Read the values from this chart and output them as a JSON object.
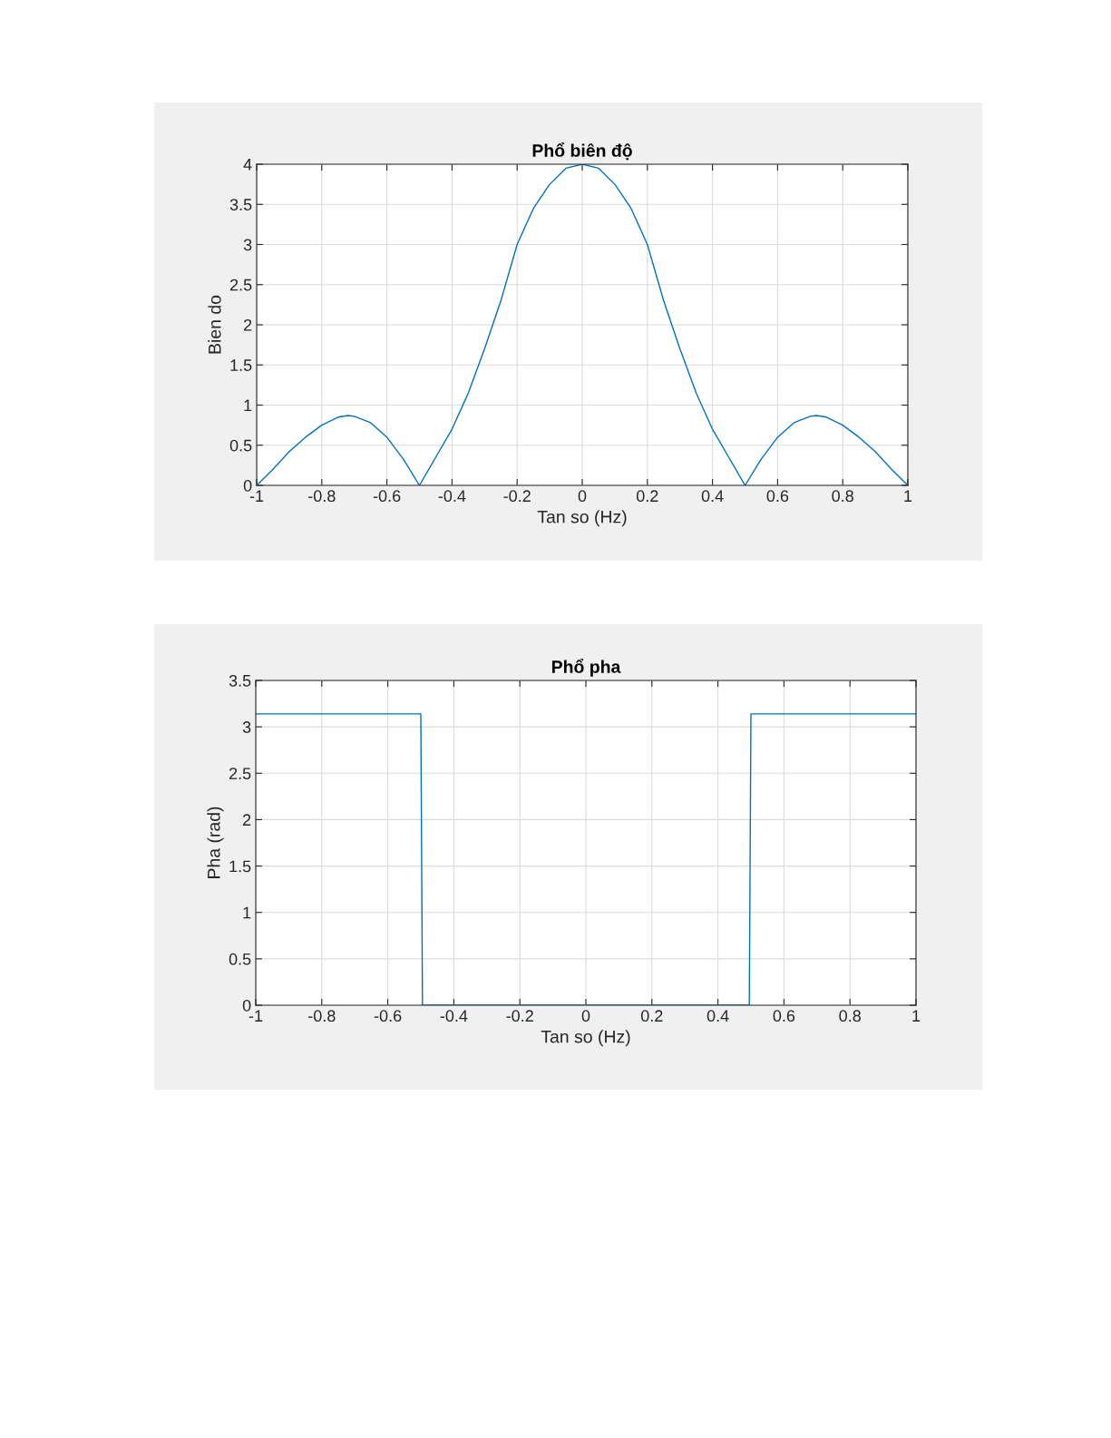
{
  "chart_data": [
    {
      "type": "line",
      "title": "Phổ biên độ",
      "xlabel": "Tan so (Hz)",
      "ylabel": "Bien do",
      "x": [
        -1,
        -0.95,
        -0.9,
        -0.85,
        -0.8,
        -0.75,
        -0.72,
        -0.7,
        -0.65,
        -0.6,
        -0.55,
        -0.5,
        -0.45,
        -0.4,
        -0.35,
        -0.3,
        -0.25,
        -0.2,
        -0.15,
        -0.1,
        -0.05,
        0,
        0.05,
        0.1,
        0.15,
        0.2,
        0.25,
        0.3,
        0.35,
        0.4,
        0.45,
        0.5,
        0.55,
        0.6,
        0.65,
        0.7,
        0.72,
        0.75,
        0.8,
        0.85,
        0.9,
        0.95,
        1
      ],
      "series": [
        {
          "color": "#0072bd",
          "values": [
            0,
            0.2,
            0.42,
            0.6,
            0.75,
            0.85,
            0.87,
            0.86,
            0.78,
            0.6,
            0.33,
            0,
            0.35,
            0.7,
            1.15,
            1.7,
            2.3,
            3.0,
            3.45,
            3.75,
            3.95,
            4.0,
            3.95,
            3.75,
            3.45,
            3.0,
            2.3,
            1.7,
            1.15,
            0.7,
            0.35,
            0,
            0.33,
            0.6,
            0.78,
            0.86,
            0.87,
            0.85,
            0.75,
            0.6,
            0.42,
            0.2,
            0
          ]
        }
      ],
      "xlim": [
        -1,
        1
      ],
      "ylim": [
        0,
        4
      ],
      "xticks": [
        -1,
        -0.8,
        -0.6,
        -0.4,
        -0.2,
        0,
        0.2,
        0.4,
        0.6,
        0.8,
        1
      ],
      "yticks": [
        0,
        0.5,
        1,
        1.5,
        2,
        2.5,
        3,
        3.5,
        4
      ],
      "grid": true
    },
    {
      "type": "line",
      "title": "Phổ pha",
      "xlabel": "Tan so (Hz)",
      "ylabel": "Pha (rad)",
      "x": [
        -1,
        -0.5,
        -0.495,
        0.495,
        0.5,
        1
      ],
      "series": [
        {
          "color": "#0072bd",
          "values": [
            3.14,
            3.14,
            0,
            0,
            3.14,
            3.14
          ]
        }
      ],
      "xlim": [
        -1,
        1
      ],
      "ylim": [
        0,
        3.5
      ],
      "xticks": [
        -1,
        -0.8,
        -0.6,
        -0.4,
        -0.2,
        0,
        0.2,
        0.4,
        0.6,
        0.8,
        1
      ],
      "yticks": [
        0,
        0.5,
        1,
        1.5,
        2,
        2.5,
        3,
        3.5
      ],
      "grid": true
    }
  ]
}
